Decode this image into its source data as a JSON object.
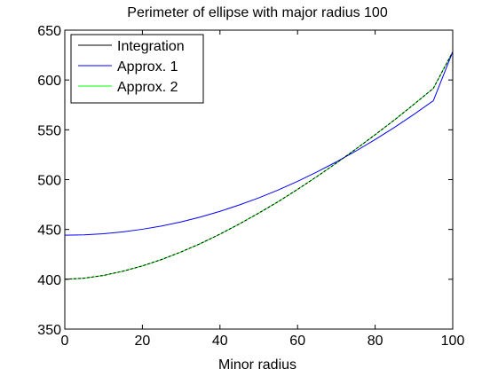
{
  "chart_data": {
    "type": "line",
    "title": "Perimeter of ellipse with major radius 100",
    "xlabel": "Minor radius",
    "ylabel": "",
    "xlim": [
      0,
      100
    ],
    "ylim": [
      350,
      650
    ],
    "x_ticks": [
      0,
      20,
      40,
      60,
      80,
      100
    ],
    "y_ticks": [
      350,
      400,
      450,
      500,
      550,
      600,
      650
    ],
    "grid": false,
    "legend_position": "top-left",
    "x": [
      0,
      5,
      10,
      15,
      20,
      25,
      30,
      35,
      40,
      45,
      50,
      55,
      60,
      65,
      70,
      75,
      80,
      85,
      90,
      95,
      100
    ],
    "series": [
      {
        "name": "Integration",
        "color": "#000000",
        "values": [
          400.0,
          401.1,
          403.9,
          408.1,
          413.4,
          419.9,
          427.5,
          435.9,
          445.3,
          455.5,
          466.4,
          477.9,
          490.2,
          503.1,
          516.6,
          530.6,
          545.1,
          560.0,
          575.6,
          591.6,
          628.3
        ]
      },
      {
        "name": "Approx. 1",
        "color": "#0000ff",
        "values": [
          444.3,
          444.6,
          445.7,
          447.6,
          450.2,
          453.5,
          457.6,
          462.5,
          468.2,
          474.6,
          481.7,
          489.6,
          498.3,
          507.7,
          517.8,
          528.6,
          540.2,
          552.5,
          565.5,
          579.2,
          628.3
        ]
      },
      {
        "name": "Approx. 2",
        "color": "#00ff00",
        "values": [
          400.0,
          401.1,
          403.9,
          408.1,
          413.4,
          419.9,
          427.5,
          435.9,
          445.3,
          455.5,
          466.4,
          477.9,
          490.2,
          503.1,
          516.6,
          530.6,
          545.1,
          560.0,
          575.6,
          591.6,
          628.3
        ]
      }
    ]
  }
}
